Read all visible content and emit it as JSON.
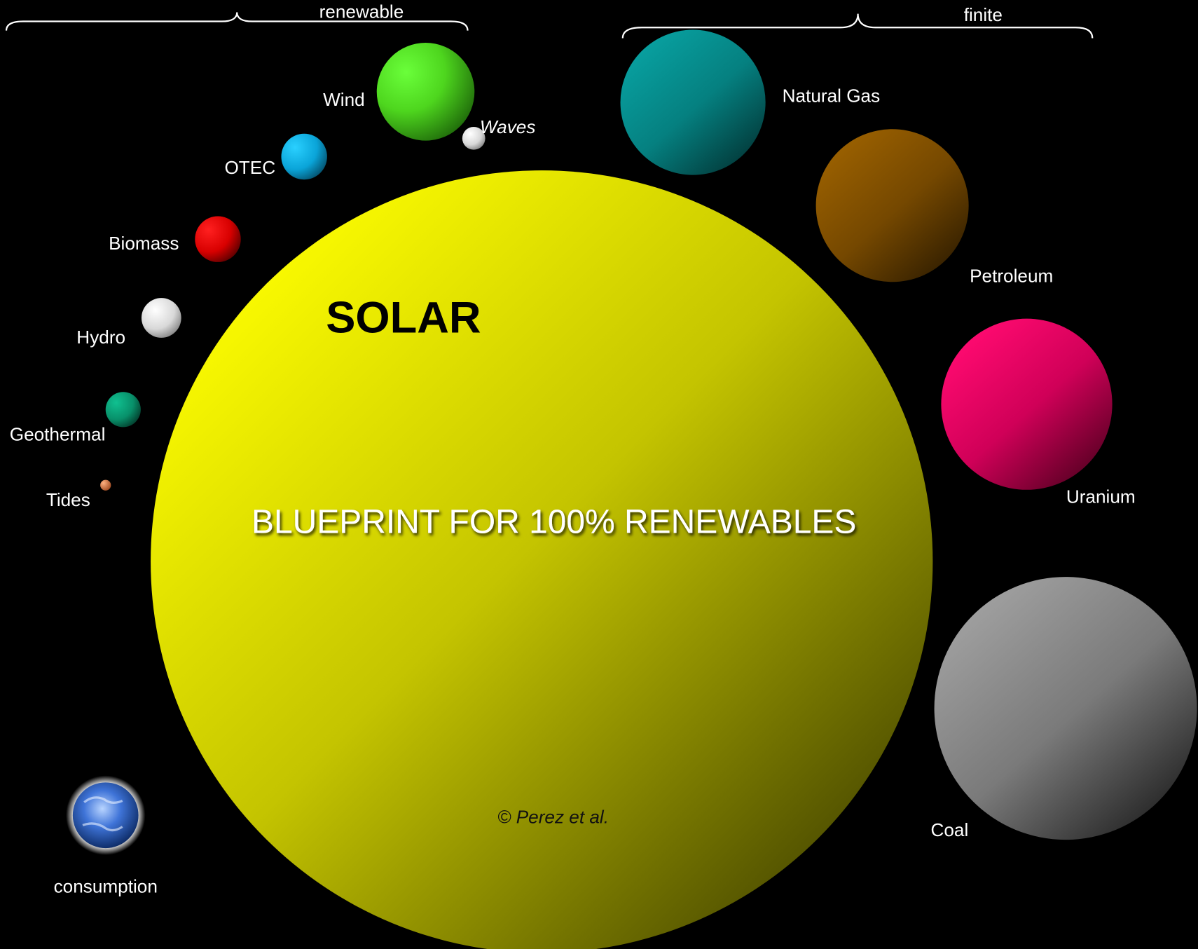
{
  "groups": [
    {
      "label": "renewable"
    },
    {
      "label": "finite"
    }
  ],
  "renewables": [
    {
      "label": "Wind"
    },
    {
      "label": "Waves"
    },
    {
      "label": "OTEC"
    },
    {
      "label": "Biomass"
    },
    {
      "label": "Hydro"
    },
    {
      "label": "Geothermal"
    },
    {
      "label": "Tides"
    }
  ],
  "solar": {
    "title": "SOLAR",
    "subtitle": "BLUEPRINT FOR 100% RENEWABLES",
    "credit": "© Perez et al."
  },
  "finite": [
    {
      "label": "Natural Gas"
    },
    {
      "label": "Petroleum"
    },
    {
      "label": "Uranium"
    },
    {
      "label": "Coal"
    }
  ],
  "consumption": {
    "label": "consumption"
  }
}
